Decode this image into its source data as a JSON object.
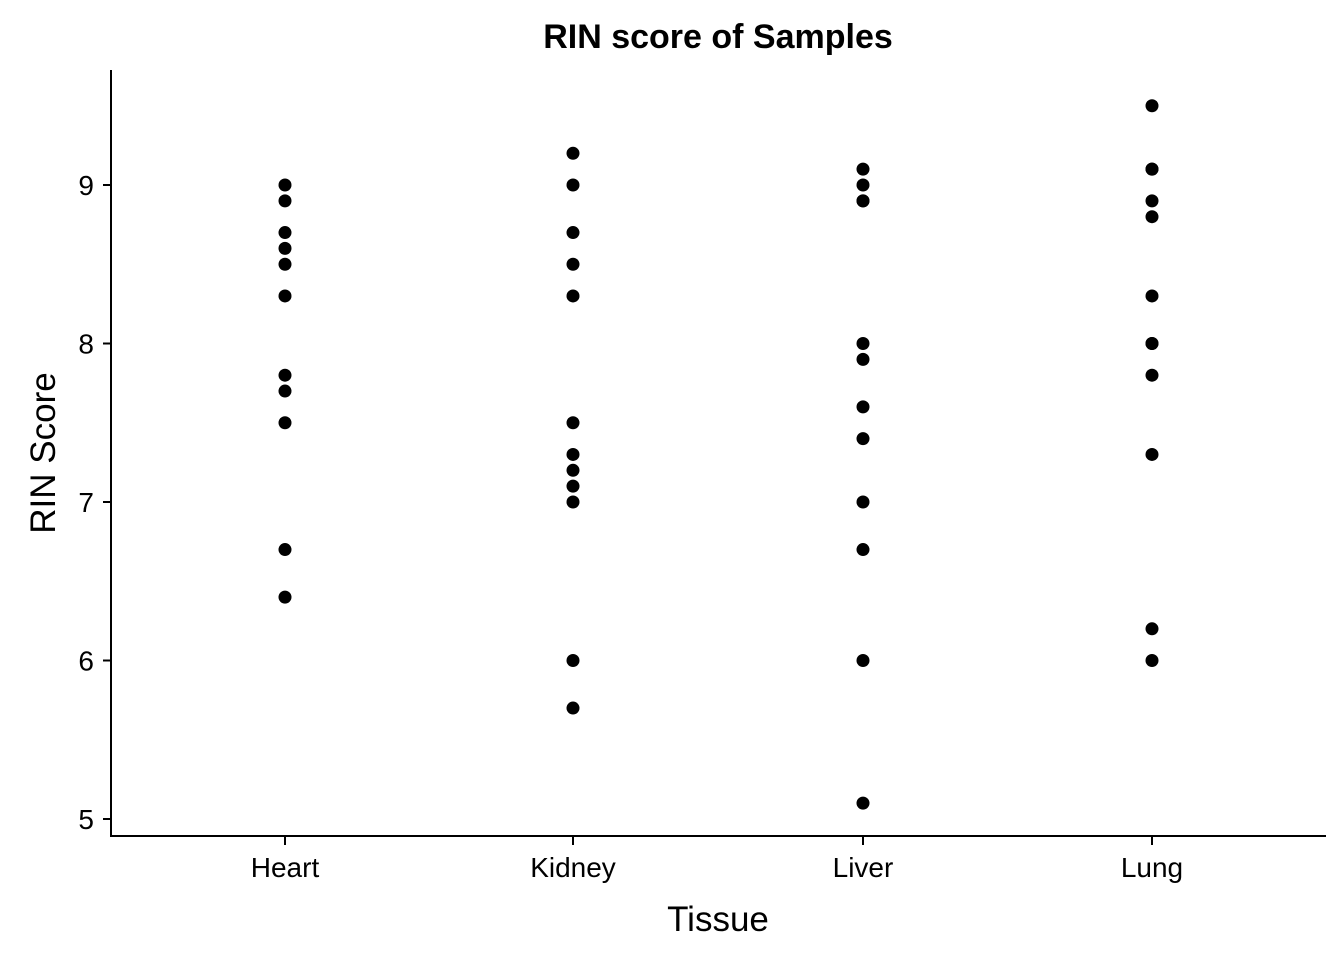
{
  "chart_data": {
    "type": "scatter",
    "title": "RIN score of Samples",
    "xlabel": "Tissue",
    "ylabel": "RIN Score",
    "categories": [
      "Heart",
      "Kidney",
      "Liver",
      "Lung"
    ],
    "series": [
      {
        "category": "Heart",
        "values": [
          9.0,
          8.9,
          8.7,
          8.6,
          8.5,
          8.3,
          7.8,
          7.7,
          7.5,
          6.7,
          6.4
        ]
      },
      {
        "category": "Kidney",
        "values": [
          9.2,
          9.0,
          8.7,
          8.5,
          8.3,
          7.5,
          7.3,
          7.2,
          7.1,
          7.0,
          6.0,
          5.7
        ]
      },
      {
        "category": "Liver",
        "values": [
          9.1,
          9.0,
          8.9,
          8.9,
          8.0,
          7.9,
          7.6,
          7.4,
          7.0,
          6.7,
          6.0,
          5.1
        ]
      },
      {
        "category": "Lung",
        "values": [
          9.5,
          9.1,
          9.1,
          8.9,
          8.8,
          8.3,
          8.0,
          8.0,
          7.8,
          7.3,
          6.2,
          6.0
        ]
      }
    ],
    "yticks": [
      "5",
      "6",
      "7",
      "8",
      "9"
    ],
    "ylim": [
      4.9,
      9.7
    ],
    "grid": false,
    "legend": "none",
    "point_color": "#000000"
  }
}
